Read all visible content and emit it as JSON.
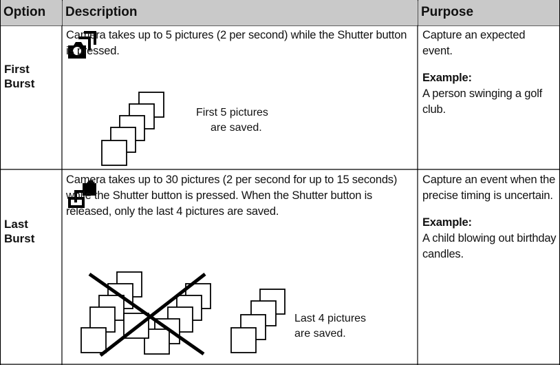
{
  "table": {
    "header": [
      "Option",
      "Description",
      "Purpose"
    ],
    "rows": [
      {
        "option": "First Burst",
        "description": "Camera takes up to 5 pictures (2 per second) while the Shutter button is pressed.",
        "figure_label": [
          "First 5 pictures",
          "are saved."
        ],
        "purpose": "Capture an expected event.",
        "example_heading": "Example:",
        "example": "A person swinging a golf club."
      },
      {
        "option": "Last Burst",
        "description": "Camera takes up to 30 pictures (2 per second for up to 15 seconds) while the Shutter button is pressed. When the Shutter button is released, only the last 4 pictures are saved.",
        "figure_label": [
          "Last 4 pictures",
          "are saved."
        ],
        "purpose": "Capture an event when the precise timing is uncertain.",
        "example_heading": "Example:",
        "example": "A child blowing out birthday candles."
      }
    ]
  }
}
